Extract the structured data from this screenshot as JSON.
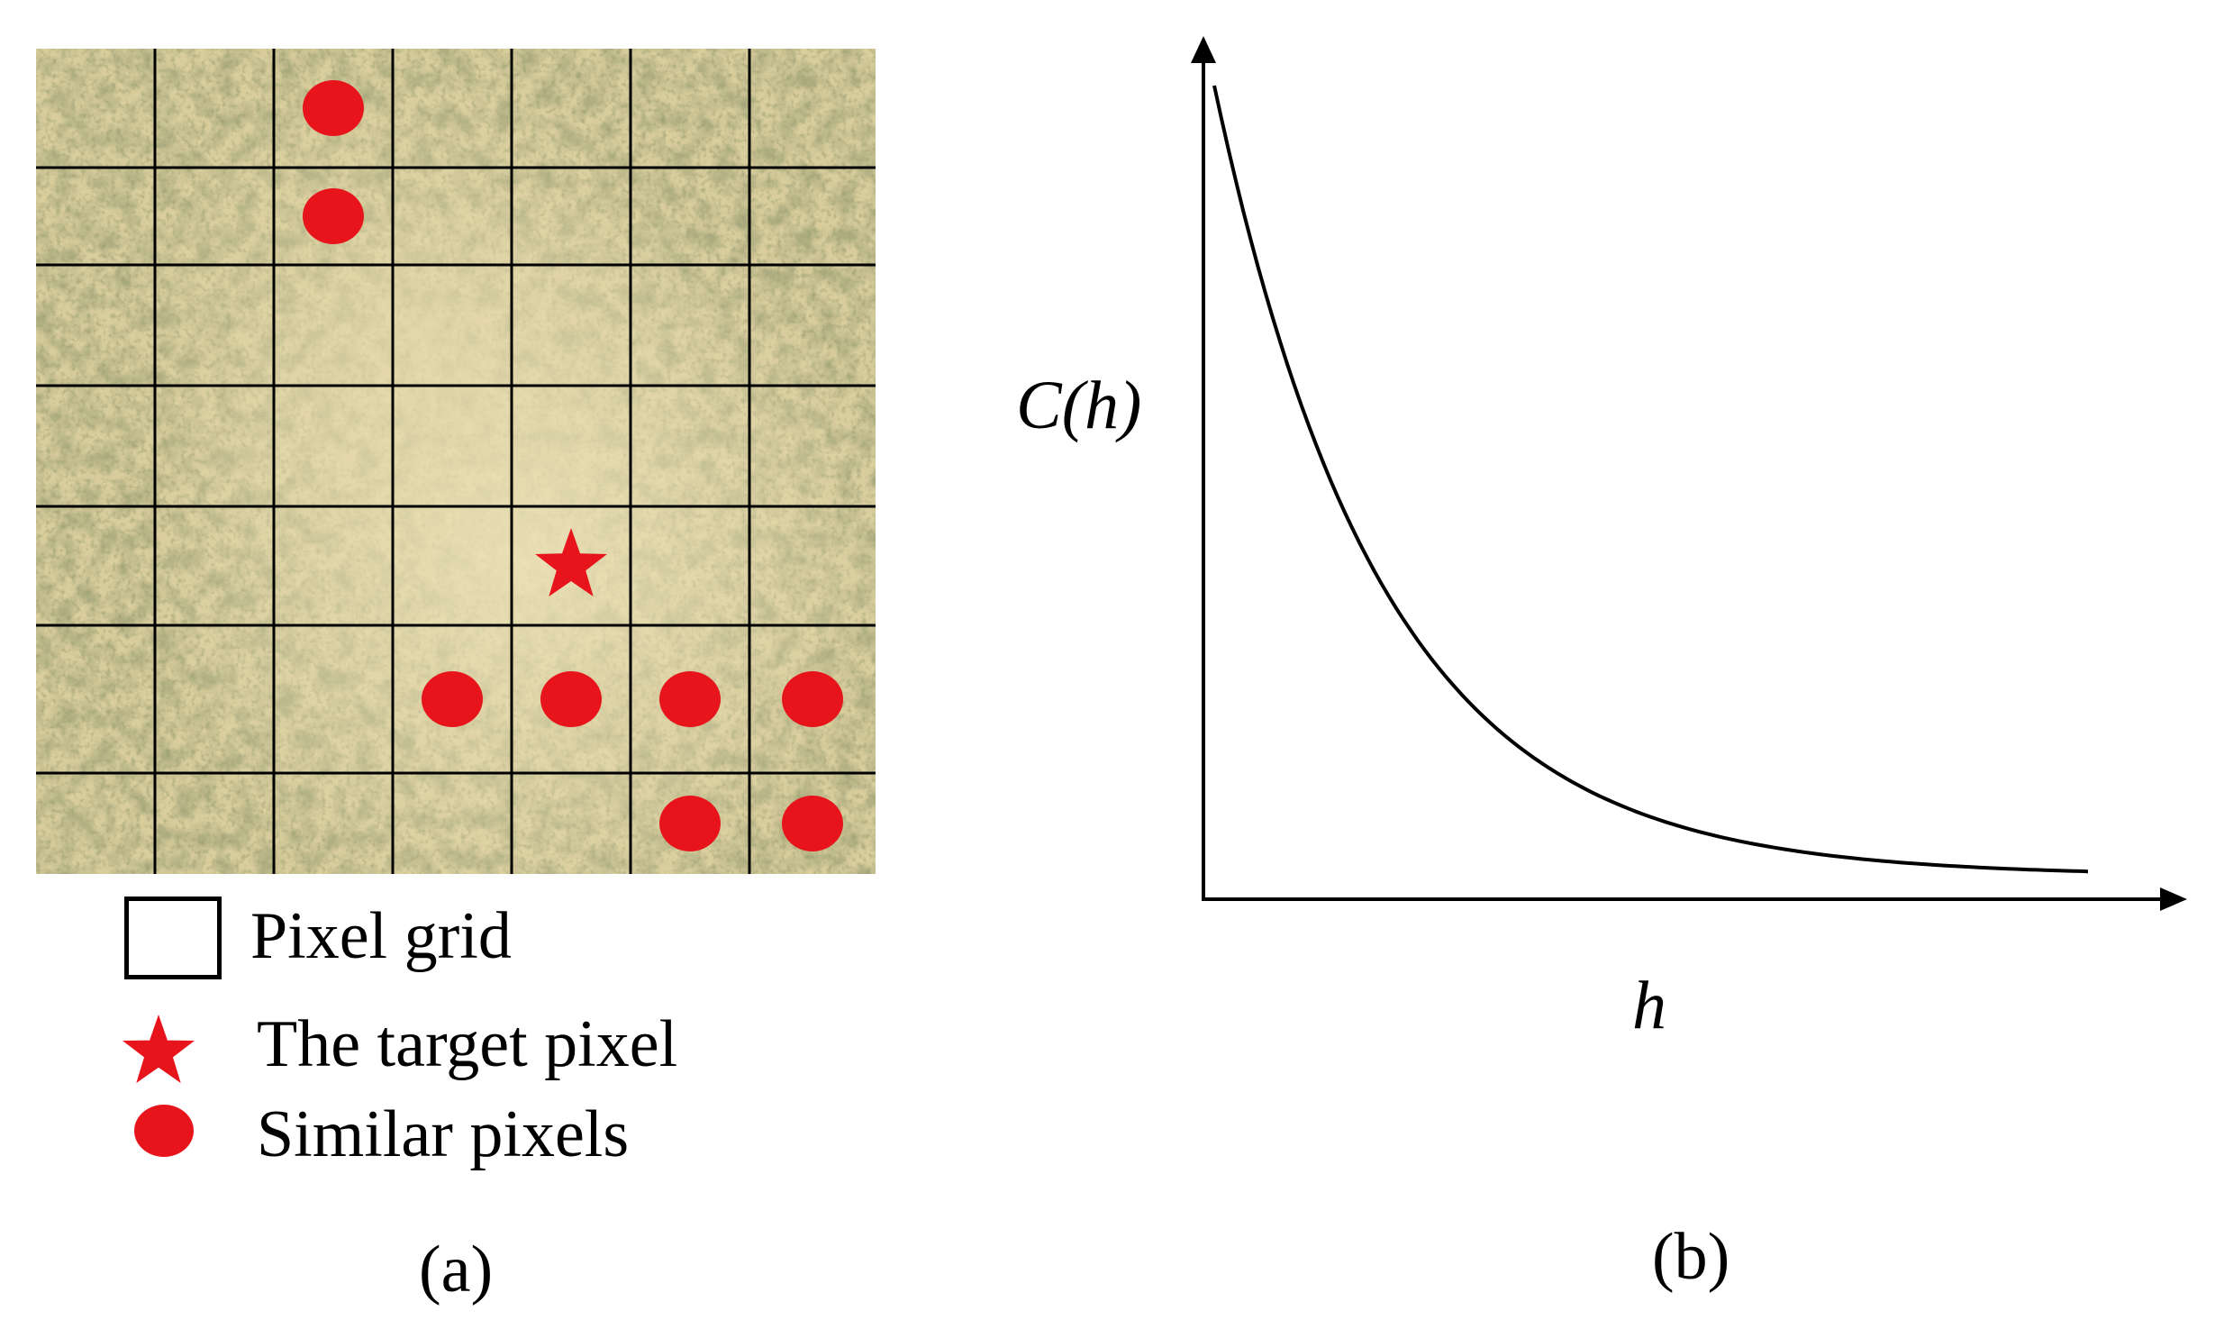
{
  "panel_a": {
    "grid": {
      "cols": 7,
      "rows": 7,
      "line_color": "#000000"
    },
    "markers": {
      "target": {
        "shape": "star",
        "col": 4,
        "row": 4,
        "color": "#e8141b"
      },
      "similar": [
        {
          "col": 2,
          "row": 0
        },
        {
          "col": 2,
          "row": 1
        },
        {
          "col": 3,
          "row": 5
        },
        {
          "col": 4,
          "row": 5
        },
        {
          "col": 5,
          "row": 5
        },
        {
          "col": 6,
          "row": 5
        },
        {
          "col": 5,
          "row": 6
        },
        {
          "col": 6,
          "row": 6
        }
      ],
      "similar_color": "#e8141b"
    },
    "legend": {
      "pixel_grid": "Pixel grid",
      "target_pixel": "The target pixel",
      "similar_pixels": "Similar pixels"
    },
    "caption": "(a)"
  },
  "panel_b": {
    "y_label": "C(h)",
    "x_label": "h",
    "caption": "(b)",
    "curve": "exponential-decay"
  },
  "colors": {
    "marker_red": "#e8141b",
    "vegetation_dark": "#6b6a3a",
    "soil_light": "#e6dcb0"
  }
}
